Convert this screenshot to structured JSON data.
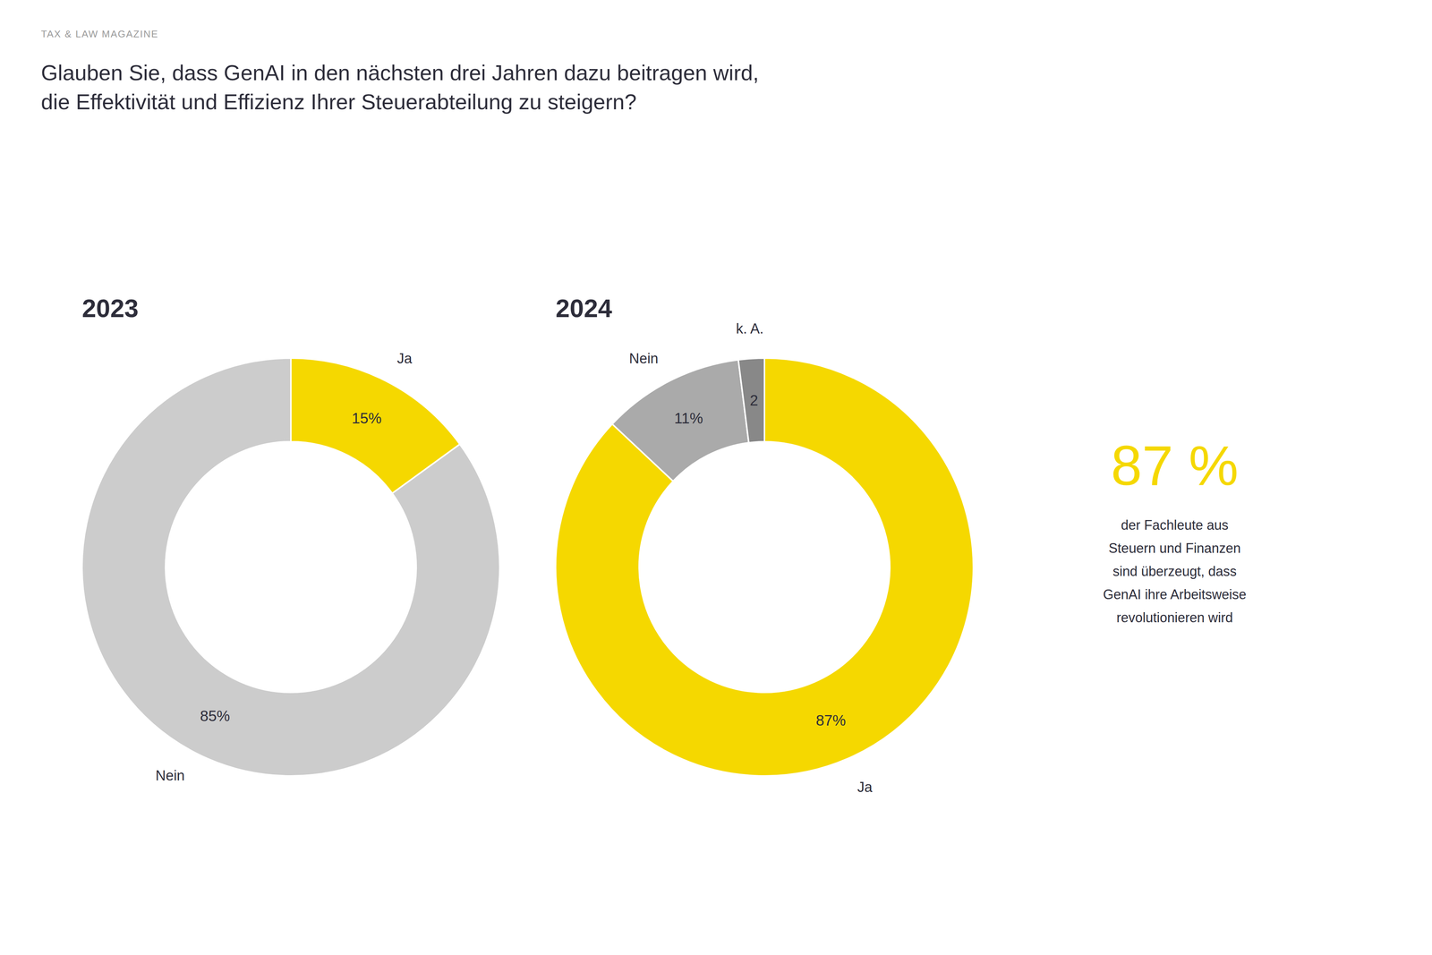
{
  "header": "TAX & LAW MAGAZINE",
  "title": [
    "Glauben Sie, dass GenAI in den nächsten drei Jahren dazu beitragen wird,",
    "die Effektivität und Effizienz Ihrer Steuerabteilung zu steigern?"
  ],
  "chart_data": [
    {
      "type": "pie",
      "title": "2023",
      "categories": [
        "Ja",
        "Nein"
      ],
      "values": [
        15,
        85
      ],
      "value_labels": [
        "15%",
        "85%"
      ],
      "colors": [
        "#f5d800",
        "#cccccc"
      ],
      "data_labels": true
    },
    {
      "type": "pie",
      "title": "2024",
      "categories": [
        "Ja",
        "Nein",
        "k. A."
      ],
      "values": [
        87,
        11,
        2
      ],
      "value_labels": [
        "87%",
        "11%",
        "2"
      ],
      "colors": [
        "#f5d800",
        "#aaaaaa",
        "#888888"
      ],
      "data_labels": true
    }
  ],
  "annotations": [
    {
      "text": "87 %",
      "color": "#f5d800"
    },
    {
      "text": [
        "der Fachleute aus",
        "Steuern und Finanzen",
        "sind überzeugt, dass",
        "GenAI ihre Arbeitsweise",
        "revolutionieren wird"
      ]
    }
  ]
}
